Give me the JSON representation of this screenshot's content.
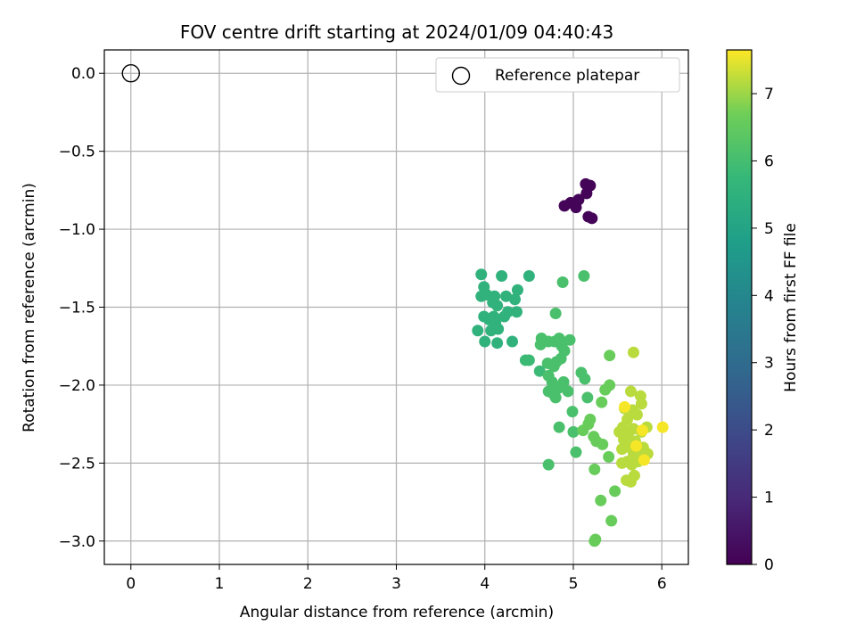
{
  "chart_data": {
    "type": "scatter",
    "title": "FOV centre drift starting at 2024/01/09 04:40:43",
    "xlabel": "Angular distance from reference (arcmin)",
    "ylabel": "Rotation from reference (arcmin)",
    "xlim": [
      -0.3,
      6.3
    ],
    "ylim": [
      -3.15,
      0.15
    ],
    "xticks": [
      0,
      1,
      2,
      3,
      4,
      5,
      6
    ],
    "xtick_labels": [
      "0",
      "1",
      "2",
      "3",
      "4",
      "5",
      "6"
    ],
    "yticks": [
      0.0,
      -0.5,
      -1.0,
      -1.5,
      -2.0,
      -2.5,
      -3.0
    ],
    "ytick_labels": [
      "0.0",
      "−0.5",
      "−1.0",
      "−1.5",
      "−2.0",
      "−2.5",
      "−3.0"
    ],
    "grid": true,
    "legend": {
      "label": "Reference platepar",
      "position": "top-right",
      "marker": "open-circle"
    },
    "reference_point": {
      "x": 0.0,
      "y": 0.0
    },
    "colorbar": {
      "label": "Hours from first FF file",
      "colormap": "viridis",
      "range": [
        0,
        7.65
      ],
      "ticks": [
        0,
        1,
        2,
        3,
        4,
        5,
        6,
        7
      ],
      "tick_labels": [
        "0",
        "1",
        "2",
        "3",
        "4",
        "5",
        "6",
        "7"
      ]
    },
    "points": [
      {
        "x": 5.14,
        "y": -0.71,
        "c": 0.1
      },
      {
        "x": 5.19,
        "y": -0.72,
        "c": 0.1
      },
      {
        "x": 5.15,
        "y": -0.77,
        "c": 0.1
      },
      {
        "x": 5.06,
        "y": -0.81,
        "c": 0.1
      },
      {
        "x": 4.97,
        "y": -0.83,
        "c": 0.1
      },
      {
        "x": 4.9,
        "y": -0.85,
        "c": 0.1
      },
      {
        "x": 5.03,
        "y": -0.86,
        "c": 0.1
      },
      {
        "x": 5.17,
        "y": -0.92,
        "c": 0.1
      },
      {
        "x": 5.21,
        "y": -0.93,
        "c": 0.1
      },
      {
        "x": 3.96,
        "y": -1.29,
        "c": 5.55
      },
      {
        "x": 4.19,
        "y": -1.3,
        "c": 5.55
      },
      {
        "x": 4.5,
        "y": -1.3,
        "c": 5.55
      },
      {
        "x": 3.99,
        "y": -1.37,
        "c": 5.55
      },
      {
        "x": 4.37,
        "y": -1.39,
        "c": 5.55
      },
      {
        "x": 4.02,
        "y": -1.42,
        "c": 5.55
      },
      {
        "x": 3.96,
        "y": -1.43,
        "c": 5.55
      },
      {
        "x": 4.11,
        "y": -1.43,
        "c": 5.55
      },
      {
        "x": 4.24,
        "y": -1.43,
        "c": 5.55
      },
      {
        "x": 4.34,
        "y": -1.45,
        "c": 5.55
      },
      {
        "x": 4.09,
        "y": -1.47,
        "c": 5.55
      },
      {
        "x": 4.14,
        "y": -1.49,
        "c": 5.55
      },
      {
        "x": 4.36,
        "y": -1.53,
        "c": 5.55
      },
      {
        "x": 4.26,
        "y": -1.53,
        "c": 5.55
      },
      {
        "x": 3.99,
        "y": -1.56,
        "c": 5.55
      },
      {
        "x": 4.1,
        "y": -1.56,
        "c": 5.55
      },
      {
        "x": 4.22,
        "y": -1.56,
        "c": 5.55
      },
      {
        "x": 4.05,
        "y": -1.58,
        "c": 5.55
      },
      {
        "x": 4.12,
        "y": -1.6,
        "c": 5.55
      },
      {
        "x": 4.15,
        "y": -1.64,
        "c": 5.55
      },
      {
        "x": 3.92,
        "y": -1.65,
        "c": 5.55
      },
      {
        "x": 4.07,
        "y": -1.65,
        "c": 5.55
      },
      {
        "x": 4.0,
        "y": -1.72,
        "c": 5.55
      },
      {
        "x": 4.14,
        "y": -1.73,
        "c": 5.55
      },
      {
        "x": 4.31,
        "y": -1.72,
        "c": 5.55
      },
      {
        "x": 4.46,
        "y": -1.84,
        "c": 5.85
      },
      {
        "x": 4.5,
        "y": -1.84,
        "c": 5.85
      },
      {
        "x": 4.62,
        "y": -1.91,
        "c": 5.85
      },
      {
        "x": 4.88,
        "y": -1.34,
        "c": 6.1
      },
      {
        "x": 5.12,
        "y": -1.3,
        "c": 6.1
      },
      {
        "x": 4.8,
        "y": -1.54,
        "c": 6.1
      },
      {
        "x": 4.64,
        "y": -1.7,
        "c": 6.1
      },
      {
        "x": 4.63,
        "y": -1.74,
        "c": 6.1
      },
      {
        "x": 4.72,
        "y": -1.72,
        "c": 6.1
      },
      {
        "x": 4.84,
        "y": -1.7,
        "c": 6.1
      },
      {
        "x": 4.96,
        "y": -1.71,
        "c": 6.1
      },
      {
        "x": 4.79,
        "y": -1.72,
        "c": 6.1
      },
      {
        "x": 4.87,
        "y": -1.75,
        "c": 6.1
      },
      {
        "x": 4.9,
        "y": -1.78,
        "c": 6.1
      },
      {
        "x": 4.71,
        "y": -1.86,
        "c": 6.1
      },
      {
        "x": 4.81,
        "y": -1.85,
        "c": 6.1
      },
      {
        "x": 4.86,
        "y": -1.83,
        "c": 6.1
      },
      {
        "x": 4.78,
        "y": -1.88,
        "c": 6.1
      },
      {
        "x": 4.72,
        "y": -1.94,
        "c": 6.1
      },
      {
        "x": 4.76,
        "y": -1.98,
        "c": 6.1
      },
      {
        "x": 4.89,
        "y": -1.98,
        "c": 6.1
      },
      {
        "x": 5.09,
        "y": -1.92,
        "c": 6.1
      },
      {
        "x": 5.13,
        "y": -1.96,
        "c": 6.1
      },
      {
        "x": 4.72,
        "y": -2.04,
        "c": 6.1
      },
      {
        "x": 4.83,
        "y": -2.02,
        "c": 6.1
      },
      {
        "x": 4.78,
        "y": -2.06,
        "c": 6.1
      },
      {
        "x": 4.94,
        "y": -2.04,
        "c": 6.1
      },
      {
        "x": 4.8,
        "y": -2.08,
        "c": 6.1
      },
      {
        "x": 5.16,
        "y": -2.08,
        "c": 6.1
      },
      {
        "x": 4.99,
        "y": -2.17,
        "c": 6.1
      },
      {
        "x": 4.84,
        "y": -2.27,
        "c": 6.1
      },
      {
        "x": 5.0,
        "y": -2.3,
        "c": 6.1
      },
      {
        "x": 5.03,
        "y": -2.43,
        "c": 6.1
      },
      {
        "x": 4.72,
        "y": -2.51,
        "c": 6.1
      },
      {
        "x": 5.41,
        "y": -1.81,
        "c": 6.6
      },
      {
        "x": 5.41,
        "y": -2.0,
        "c": 6.6
      },
      {
        "x": 5.36,
        "y": -2.03,
        "c": 6.6
      },
      {
        "x": 5.32,
        "y": -2.11,
        "c": 6.6
      },
      {
        "x": 5.19,
        "y": -2.22,
        "c": 6.6
      },
      {
        "x": 5.17,
        "y": -2.25,
        "c": 6.6
      },
      {
        "x": 5.11,
        "y": -2.29,
        "c": 6.6
      },
      {
        "x": 5.23,
        "y": -2.33,
        "c": 6.6
      },
      {
        "x": 5.26,
        "y": -2.36,
        "c": 6.6
      },
      {
        "x": 5.33,
        "y": -2.38,
        "c": 6.6
      },
      {
        "x": 5.4,
        "y": -2.46,
        "c": 6.6
      },
      {
        "x": 5.24,
        "y": -2.54,
        "c": 6.6
      },
      {
        "x": 5.47,
        "y": -2.68,
        "c": 6.6
      },
      {
        "x": 5.31,
        "y": -2.74,
        "c": 6.6
      },
      {
        "x": 5.43,
        "y": -2.87,
        "c": 6.6
      },
      {
        "x": 5.25,
        "y": -2.99,
        "c": 6.6
      },
      {
        "x": 5.24,
        "y": -3.0,
        "c": 6.6
      },
      {
        "x": 5.68,
        "y": -1.79,
        "c": 7.2
      },
      {
        "x": 5.65,
        "y": -2.04,
        "c": 7.2
      },
      {
        "x": 5.76,
        "y": -2.07,
        "c": 7.2
      },
      {
        "x": 5.77,
        "y": -2.12,
        "c": 7.2
      },
      {
        "x": 5.58,
        "y": -2.15,
        "c": 7.2
      },
      {
        "x": 5.67,
        "y": -2.16,
        "c": 7.2
      },
      {
        "x": 5.72,
        "y": -2.19,
        "c": 7.2
      },
      {
        "x": 5.61,
        "y": -2.22,
        "c": 7.2
      },
      {
        "x": 5.56,
        "y": -2.27,
        "c": 7.2
      },
      {
        "x": 5.68,
        "y": -2.28,
        "c": 7.2
      },
      {
        "x": 5.83,
        "y": -2.27,
        "c": 7.2
      },
      {
        "x": 5.52,
        "y": -2.3,
        "c": 7.2
      },
      {
        "x": 5.62,
        "y": -2.31,
        "c": 7.2
      },
      {
        "x": 5.77,
        "y": -2.3,
        "c": 7.2
      },
      {
        "x": 5.57,
        "y": -2.35,
        "c": 7.2
      },
      {
        "x": 5.7,
        "y": -2.36,
        "c": 7.2
      },
      {
        "x": 5.64,
        "y": -2.4,
        "c": 7.2
      },
      {
        "x": 5.55,
        "y": -2.41,
        "c": 7.2
      },
      {
        "x": 5.79,
        "y": -2.4,
        "c": 7.2
      },
      {
        "x": 5.68,
        "y": -2.44,
        "c": 7.2
      },
      {
        "x": 5.75,
        "y": -2.45,
        "c": 7.2
      },
      {
        "x": 5.84,
        "y": -2.44,
        "c": 7.2
      },
      {
        "x": 5.61,
        "y": -2.49,
        "c": 7.2
      },
      {
        "x": 5.55,
        "y": -2.5,
        "c": 7.2
      },
      {
        "x": 5.66,
        "y": -2.51,
        "c": 7.2
      },
      {
        "x": 5.73,
        "y": -2.49,
        "c": 7.2
      },
      {
        "x": 5.69,
        "y": -2.58,
        "c": 7.2
      },
      {
        "x": 5.6,
        "y": -2.61,
        "c": 7.2
      },
      {
        "x": 5.65,
        "y": -2.62,
        "c": 7.2
      },
      {
        "x": 6.01,
        "y": -2.27,
        "c": 7.6
      },
      {
        "x": 5.58,
        "y": -2.14,
        "c": 7.6
      },
      {
        "x": 5.78,
        "y": -2.29,
        "c": 7.6
      },
      {
        "x": 5.71,
        "y": -2.39,
        "c": 7.6
      },
      {
        "x": 5.8,
        "y": -2.48,
        "c": 7.6
      }
    ]
  }
}
